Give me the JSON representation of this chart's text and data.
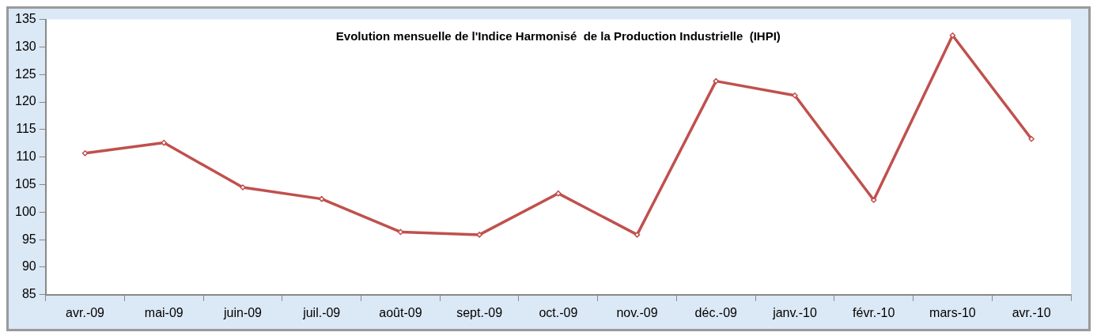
{
  "chart_data": {
    "type": "line",
    "title": "Evolution mensuelle de l'Indice Harmonisé  de la Production Industrielle  (IHPI)",
    "categories": [
      "avr.-09",
      "mai-09",
      "juin-09",
      "juil.-09",
      "août-09",
      "sept.-09",
      "oct.-09",
      "nov.-09",
      "déc.-09",
      "janv.-10",
      "févr.-10",
      "mars-10",
      "avr.-10"
    ],
    "series": [
      {
        "color": "#c0504d",
        "values": [
          110.7,
          112.6,
          104.5,
          102.4,
          96.4,
          95.9,
          103.4,
          95.9,
          123.8,
          121.2,
          102.2,
          132.1,
          113.3
        ]
      }
    ],
    "ylim": [
      85,
      135
    ],
    "yticks": [
      85,
      90,
      95,
      100,
      105,
      110,
      115,
      120,
      125,
      130,
      135
    ],
    "grid": false,
    "legend": false,
    "marker": "diamond",
    "line_style": "solid"
  }
}
